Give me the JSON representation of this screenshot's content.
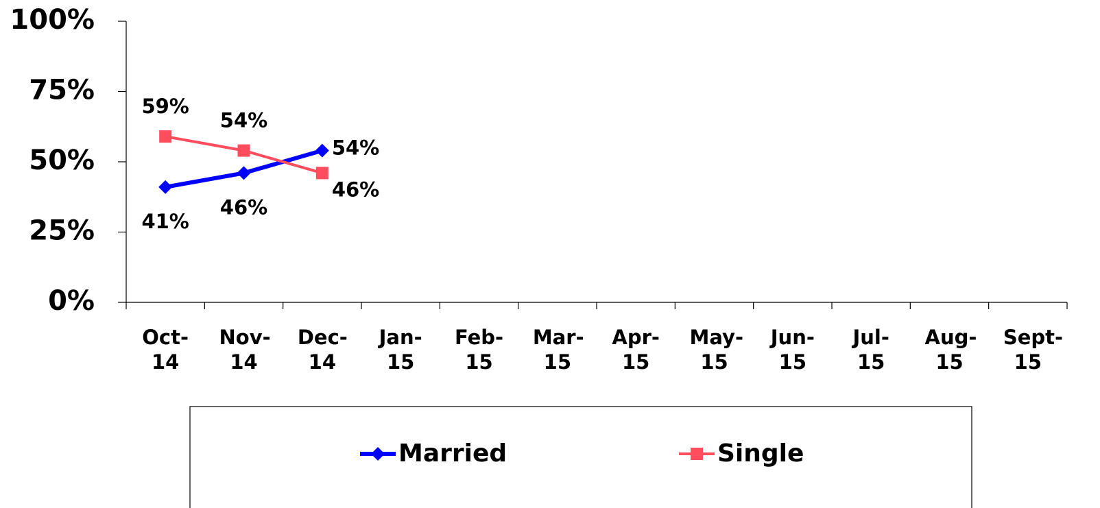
{
  "chart_data": {
    "type": "line",
    "categories": [
      "Oct-14",
      "Nov-14",
      "Dec-14",
      "Jan-15",
      "Feb-15",
      "Mar-15",
      "Apr-15",
      "May-15",
      "Jun-15",
      "Jul-15",
      "Aug-15",
      "Sept-15"
    ],
    "series": [
      {
        "name": "Married",
        "color": "#0000ff",
        "marker": "diamond",
        "values": [
          41,
          46,
          54,
          null,
          null,
          null,
          null,
          null,
          null,
          null,
          null,
          null
        ],
        "value_labels": [
          "41%",
          "46%",
          "54%",
          null,
          null,
          null,
          null,
          null,
          null,
          null,
          null,
          null
        ]
      },
      {
        "name": "Single",
        "color": "#ff4d5e",
        "marker": "square",
        "values": [
          59,
          54,
          46,
          null,
          null,
          null,
          null,
          null,
          null,
          null,
          null,
          null
        ],
        "value_labels": [
          "59%",
          "54%",
          "46%",
          null,
          null,
          null,
          null,
          null,
          null,
          null,
          null,
          null
        ]
      }
    ],
    "ylim": [
      0,
      100
    ],
    "yticks": [
      {
        "value": 0,
        "label": "0%"
      },
      {
        "value": 25,
        "label": "25%"
      },
      {
        "value": 50,
        "label": "50%"
      },
      {
        "value": 75,
        "label": "75%"
      },
      {
        "value": 100,
        "label": "100%"
      }
    ],
    "grid": false,
    "legend": "bottom"
  }
}
